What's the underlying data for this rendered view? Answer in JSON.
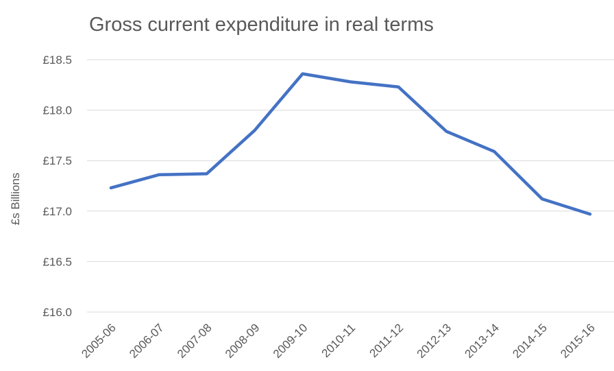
{
  "chart_data": {
    "type": "line",
    "title": "Gross current expenditure in real terms",
    "y_label": "£s Billions",
    "categories": [
      "2005-06",
      "2006-07",
      "2007-08",
      "2008-09",
      "2009-10",
      "2010-11",
      "2011-12",
      "2012-13",
      "2013-14",
      "2014-15",
      "2015-16"
    ],
    "series": [
      {
        "name": "Gross current expenditure",
        "color": "#4472c4",
        "values": [
          17.23,
          17.36,
          17.37,
          17.8,
          18.36,
          18.28,
          18.23,
          17.79,
          17.59,
          17.12,
          16.97
        ]
      }
    ],
    "ylim": [
      16.0,
      18.5
    ],
    "yticks": [
      {
        "value": 16.0,
        "label": "£16.0"
      },
      {
        "value": 16.5,
        "label": "£16.5"
      },
      {
        "value": 17.0,
        "label": "£17.0"
      },
      {
        "value": 17.5,
        "label": "£17.5"
      },
      {
        "value": 18.0,
        "label": "£18.0"
      },
      {
        "value": 18.5,
        "label": "£18.5"
      }
    ],
    "grid": true
  }
}
